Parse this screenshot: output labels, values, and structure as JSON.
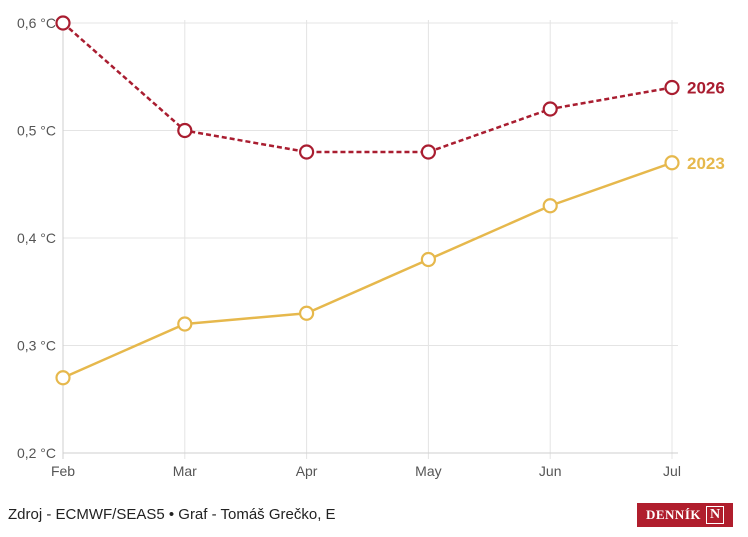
{
  "chart_data": {
    "type": "line",
    "categories": [
      "Feb",
      "Mar",
      "Apr",
      "May",
      "Jun",
      "Jul"
    ],
    "y_ticks": [
      "0,2 °C",
      "0,3 °C",
      "0,4 °C",
      "0,5 °C",
      "0,6 °C"
    ],
    "y_tick_values": [
      0.2,
      0.3,
      0.4,
      0.5,
      0.6
    ],
    "ylim": [
      0.2,
      0.6
    ],
    "grid": true,
    "series": [
      {
        "name": "2026",
        "values": [
          0.6,
          0.5,
          0.48,
          0.48,
          0.52,
          0.54
        ],
        "color": "#a91d30",
        "line_style": "dashed",
        "marker": "open-circle"
      },
      {
        "name": "2023",
        "values": [
          0.27,
          0.32,
          0.33,
          0.38,
          0.43,
          0.47
        ],
        "color": "#e6b84c",
        "line_style": "solid",
        "marker": "open-circle"
      }
    ]
  },
  "footer": {
    "source": "Zdroj - ECMWF/SEAS5 • Graf - Tomáš Grečko, E"
  },
  "brand": {
    "name": "DENNÍK",
    "mark": "N",
    "color": "#b01e2d"
  }
}
